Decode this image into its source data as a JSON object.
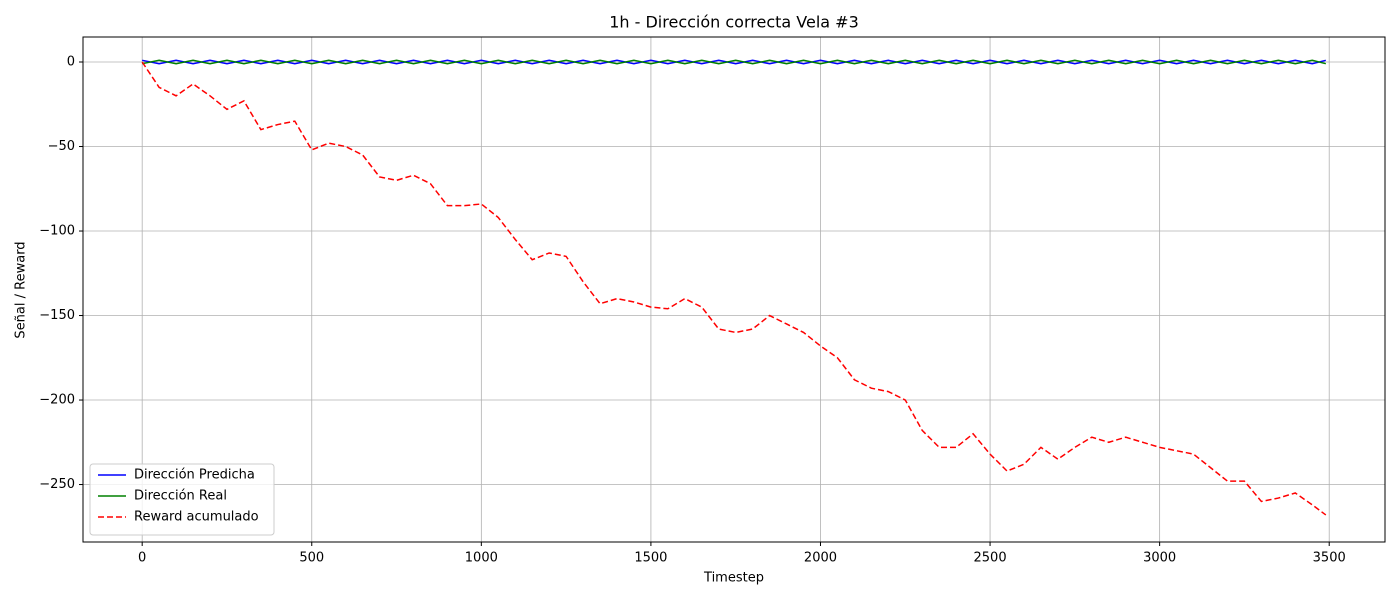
{
  "chart_data": {
    "type": "line",
    "title": "1h - Dirección correcta Vela #3",
    "xlabel": "Timestep",
    "ylabel": "Señal / Reward",
    "x": [
      0,
      50,
      100,
      150,
      200,
      250,
      300,
      350,
      400,
      450,
      500,
      550,
      600,
      650,
      700,
      750,
      800,
      850,
      900,
      950,
      1000,
      1050,
      1100,
      1150,
      1200,
      1250,
      1300,
      1350,
      1400,
      1450,
      1500,
      1550,
      1600,
      1650,
      1700,
      1750,
      1800,
      1850,
      1900,
      1950,
      2000,
      2050,
      2100,
      2150,
      2200,
      2250,
      2300,
      2350,
      2400,
      2450,
      2500,
      2550,
      2600,
      2650,
      2700,
      2750,
      2800,
      2850,
      2900,
      2950,
      3000,
      3050,
      3100,
      3150,
      3200,
      3250,
      3300,
      3350,
      3400,
      3450,
      3490
    ],
    "series": [
      {
        "name": "Dirección Predicha",
        "color": "#0000ff",
        "dash": false,
        "values": [
          1,
          -1,
          1,
          -1,
          1,
          -1,
          1,
          -1,
          1,
          -1,
          1,
          -1,
          1,
          -1,
          1,
          -1,
          1,
          -1,
          1,
          -1,
          1,
          -1,
          1,
          -1,
          1,
          -1,
          1,
          -1,
          1,
          -1,
          1,
          -1,
          1,
          -1,
          1,
          -1,
          1,
          -1,
          1,
          -1,
          1,
          -1,
          1,
          -1,
          1,
          -1,
          1,
          -1,
          1,
          -1,
          1,
          -1,
          1,
          -1,
          1,
          -1,
          1,
          -1,
          1,
          -1,
          1,
          -1,
          1,
          -1,
          1,
          -1,
          1,
          -1,
          1,
          -1,
          1
        ]
      },
      {
        "name": "Dirección Real",
        "color": "#008000",
        "dash": false,
        "values": [
          -1,
          1,
          -1,
          1,
          -1,
          1,
          -1,
          1,
          -1,
          1,
          -1,
          1,
          -1,
          1,
          -1,
          1,
          -1,
          1,
          -1,
          1,
          -1,
          1,
          -1,
          1,
          -1,
          1,
          -1,
          1,
          -1,
          1,
          -1,
          1,
          -1,
          1,
          -1,
          1,
          -1,
          1,
          -1,
          1,
          -1,
          1,
          -1,
          1,
          -1,
          1,
          -1,
          1,
          -1,
          1,
          -1,
          1,
          -1,
          1,
          -1,
          1,
          -1,
          1,
          -1,
          1,
          -1,
          1,
          -1,
          1,
          -1,
          1,
          -1,
          1,
          -1,
          1,
          -1
        ]
      },
      {
        "name": "Reward acumulado",
        "color": "#ff0000",
        "dash": true,
        "values": [
          0,
          -15,
          -20,
          -13,
          -20,
          -28,
          -23,
          -40,
          -37,
          -35,
          -52,
          -48,
          -50,
          -55,
          -68,
          -70,
          -67,
          -72,
          -85,
          -85,
          -84,
          -92,
          -105,
          -117,
          -113,
          -115,
          -130,
          -143,
          -140,
          -142,
          -145,
          -146,
          -140,
          -145,
          -158,
          -160,
          -158,
          -150,
          -155,
          -160,
          -168,
          -175,
          -188,
          -193,
          -195,
          -200,
          -218,
          -228,
          -228,
          -220,
          -232,
          -242,
          -238,
          -228,
          -235,
          -228,
          -222,
          -225,
          -222,
          -225,
          -228,
          -230,
          -232,
          -240,
          -248,
          -248,
          -260,
          -258,
          -255,
          -262,
          -268
        ]
      }
    ],
    "xlim": [
      -174.5,
      3664.5
    ],
    "ylim": [
      -284,
      14.8
    ],
    "xticks": [
      0,
      500,
      1000,
      1500,
      2000,
      2500,
      3000,
      3500
    ],
    "yticks": [
      {
        "value": -250,
        "label": "−250"
      },
      {
        "value": -200,
        "label": "−200"
      },
      {
        "value": -150,
        "label": "−150"
      },
      {
        "value": -100,
        "label": "−100"
      },
      {
        "value": -50,
        "label": "−50"
      },
      0
    ],
    "grid": true,
    "legend": "lower left"
  }
}
